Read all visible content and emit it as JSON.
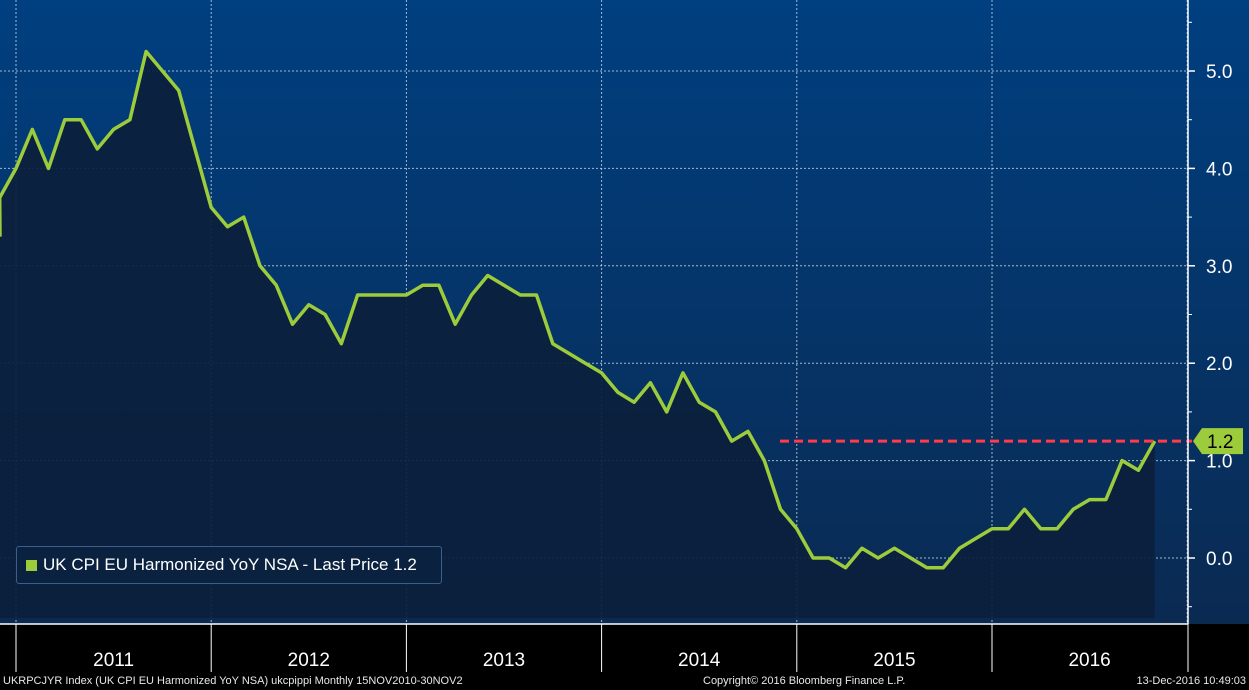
{
  "chart_data": {
    "type": "area",
    "title": "",
    "xlabel": "",
    "ylabel": "",
    "ylim": [
      -0.6,
      5.6
    ],
    "y_ticks": [
      "0.0",
      "1.0",
      "2.0",
      "3.0",
      "4.0",
      "5.0"
    ],
    "year_labels": [
      "2011",
      "2012",
      "2013",
      "2014",
      "2015",
      "2016"
    ],
    "x_start": "Nov 2010",
    "x_end": "Nov 2016",
    "grid": true,
    "legend_position": "bottom-left",
    "series": [
      {
        "name": "UK CPI EU Harmonized YoY NSA",
        "color": "#9ccb3b",
        "dates": [
          "2010-11",
          "2010-12",
          "2011-01",
          "2011-02",
          "2011-03",
          "2011-04",
          "2011-05",
          "2011-06",
          "2011-07",
          "2011-08",
          "2011-09",
          "2011-10",
          "2011-11",
          "2011-12",
          "2012-01",
          "2012-02",
          "2012-03",
          "2012-04",
          "2012-05",
          "2012-06",
          "2012-07",
          "2012-08",
          "2012-09",
          "2012-10",
          "2012-11",
          "2012-12",
          "2013-01",
          "2013-02",
          "2013-03",
          "2013-04",
          "2013-05",
          "2013-06",
          "2013-07",
          "2013-08",
          "2013-09",
          "2013-10",
          "2013-11",
          "2013-12",
          "2014-01",
          "2014-02",
          "2014-03",
          "2014-04",
          "2014-05",
          "2014-06",
          "2014-07",
          "2014-08",
          "2014-09",
          "2014-10",
          "2014-11",
          "2014-12",
          "2015-01",
          "2015-02",
          "2015-03",
          "2015-04",
          "2015-05",
          "2015-06",
          "2015-07",
          "2015-08",
          "2015-09",
          "2015-10",
          "2015-11",
          "2015-12",
          "2016-01",
          "2016-02",
          "2016-03",
          "2016-04",
          "2016-05",
          "2016-06",
          "2016-07",
          "2016-08",
          "2016-09",
          "2016-10",
          "2016-11"
        ],
        "values": [
          3.3,
          3.7,
          4.0,
          4.4,
          4.0,
          4.5,
          4.5,
          4.2,
          4.4,
          4.5,
          5.2,
          5.0,
          4.8,
          4.2,
          3.6,
          3.4,
          3.5,
          3.0,
          2.8,
          2.4,
          2.6,
          2.5,
          2.2,
          2.7,
          2.7,
          2.7,
          2.7,
          2.8,
          2.8,
          2.4,
          2.7,
          2.9,
          2.8,
          2.7,
          2.7,
          2.2,
          2.1,
          2.0,
          1.9,
          1.7,
          1.6,
          1.8,
          1.5,
          1.9,
          1.6,
          1.5,
          1.2,
          1.3,
          1.0,
          0.5,
          0.3,
          0.0,
          0.0,
          -0.1,
          0.1,
          0.0,
          0.1,
          0.0,
          -0.1,
          -0.1,
          0.1,
          0.2,
          0.3,
          0.3,
          0.5,
          0.3,
          0.3,
          0.5,
          0.6,
          0.6,
          1.0,
          0.9,
          1.2
        ]
      }
    ],
    "last_price": {
      "value": 1.2,
      "label": "1.2",
      "color": "#ff3b4a"
    }
  },
  "legend": {
    "label": "UK CPI EU Harmonized YoY NSA - Last Price 1.2"
  },
  "footer": {
    "left": "UKRPCJYR Index (UK CPI EU Harmonized YoY NSA) ukcpippi  Monthly 15NOV2010-30NOV2",
    "middle": "Copyright© 2016 Bloomberg Finance L.P.",
    "right": "13-Dec-2016 10:49:03"
  },
  "colors": {
    "plot_top": "#003f80",
    "plot_bottom": "#0a2a52",
    "area_fill": "#0b1f3c",
    "grid": "#d8e4f0",
    "text": "#ffffff"
  }
}
